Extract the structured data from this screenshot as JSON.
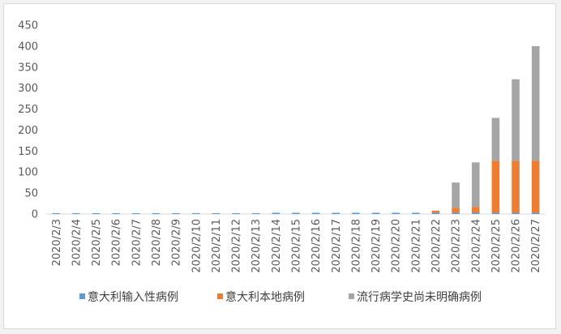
{
  "chart_data": {
    "type": "bar",
    "stacked": true,
    "categories": [
      "2020/2/3",
      "2020/2/4",
      "2020/2/5",
      "2020/2/6",
      "2020/2/7",
      "2020/2/8",
      "2020/2/9",
      "2020/2/10",
      "2020/2/11",
      "2020/2/12",
      "2020/2/13",
      "2020/2/14",
      "2020/2/15",
      "2020/2/16",
      "2020/2/17",
      "2020/2/18",
      "2020/2/19",
      "2020/2/20",
      "2020/2/21",
      "2020/2/22",
      "2020/2/23",
      "2020/2/24",
      "2020/2/25",
      "2020/2/26",
      "2020/2/27"
    ],
    "series": [
      {
        "name": "意大利输入性病例",
        "color": "#5b9bd5",
        "values": [
          2,
          2,
          2,
          2,
          2,
          2,
          2,
          2,
          2,
          2,
          2,
          3,
          3,
          3,
          3,
          3,
          3,
          3,
          3,
          3,
          3,
          3,
          3,
          3,
          3
        ]
      },
      {
        "name": "意大利本地病例",
        "color": "#ed7d31",
        "values": [
          0,
          0,
          0,
          0,
          0,
          0,
          0,
          0,
          0,
          0,
          0,
          0,
          0,
          0,
          0,
          0,
          0,
          0,
          0,
          5,
          12,
          14,
          124,
          124,
          124
        ]
      },
      {
        "name": "流行病学史尚未明确病例",
        "color": "#a5a5a5",
        "values": [
          0,
          0,
          0,
          0,
          0,
          0,
          0,
          0,
          0,
          0,
          0,
          0,
          0,
          0,
          0,
          0,
          0,
          0,
          0,
          0,
          60,
          106,
          102,
          194,
          273
        ]
      }
    ],
    "ylim": [
      0,
      450
    ],
    "yticks": [
      0,
      50,
      100,
      150,
      200,
      250,
      300,
      350,
      400,
      450
    ],
    "grid": false,
    "legend_position": "bottom"
  }
}
